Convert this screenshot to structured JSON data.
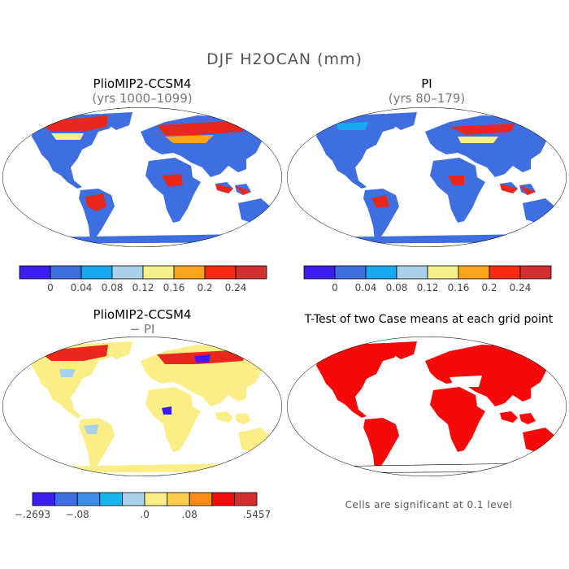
{
  "figure": {
    "title": "DJF H2OCAN (mm)"
  },
  "panels": [
    {
      "id": "top-left",
      "title": "PlioMIP2-CCSM4",
      "subtitle": "(yrs 1000–1099)"
    },
    {
      "id": "top-right",
      "title": "PI",
      "subtitle": "(yrs 80–179)"
    },
    {
      "id": "bottom-left",
      "title": "PlioMIP2-CCSM4",
      "subtitle": "− PI"
    },
    {
      "id": "bottom-right",
      "title": "T-Test of two Case means at each grid point",
      "subtitle": ""
    }
  ],
  "colorbars": {
    "absolute": {
      "colors": [
        "#3b1ff0",
        "#3f6ee0",
        "#18a8f0",
        "#a8d2ec",
        "#f7f08a",
        "#fba41a",
        "#f52b12",
        "#d32f2f"
      ],
      "labels": [
        "0",
        "0.04",
        "0.08",
        "0.12",
        "0.16",
        "0.2",
        "0.24"
      ]
    },
    "difference": {
      "colors": [
        "#3b1ff0",
        "#3f6ee0",
        "#3d8de6",
        "#18b6f0",
        "#a8d2ec",
        "#fbee86",
        "#fdcd50",
        "#fb8a17",
        "#f20c0c",
        "#d32f2f"
      ],
      "labels": [
        "−.2693",
        "−.08",
        ".0",
        ".08",
        ".5457"
      ]
    }
  },
  "significance_note": "Cells are significant at 0.1 level",
  "colors": {
    "land_low": "#3f6ee0",
    "land_high": "#e8281c",
    "diff_neutral": "#fbee86",
    "significant": "#f50a0a",
    "outline": "#000000"
  }
}
